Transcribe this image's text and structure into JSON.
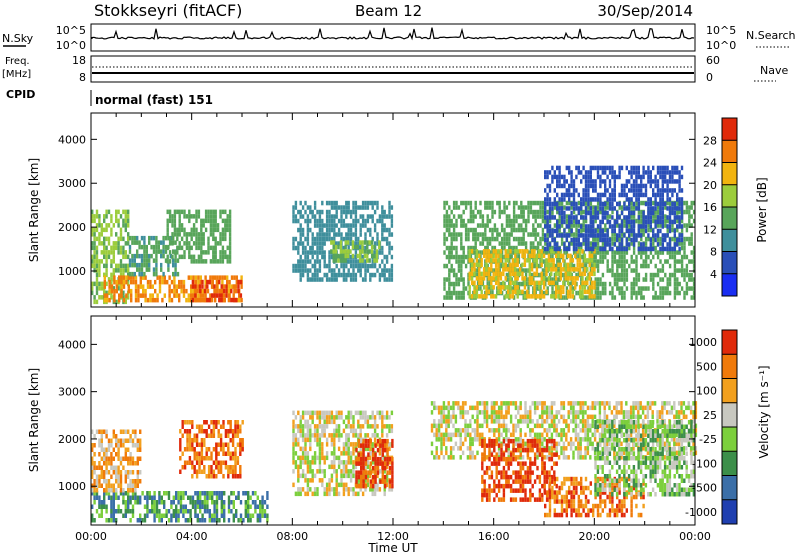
{
  "header": {
    "station": "Stokkseyri (fitACF)",
    "beam": "Beam 12",
    "date": "30/Sep/2014"
  },
  "top_panels": {
    "nsky_label": "N.Sky",
    "nsearch_label": "N.Search",
    "noise_ticks": [
      "10^5",
      "10^0"
    ],
    "freq_label": "Freq.",
    "freq_unit": "[MHz]",
    "freq_ticks": [
      "18",
      "8"
    ],
    "nave_ticks": [
      "60",
      "0"
    ],
    "nave_label": "Nave",
    "cpid_label": "CPID",
    "cpid_text": "normal (fast) 151"
  },
  "chart_data": [
    {
      "type": "heatmap",
      "panel": "power",
      "ylabel": "Slant Range [km]",
      "ylim": [
        180,
        4600
      ],
      "yticks": [
        1000,
        2000,
        3000,
        4000
      ],
      "xlabel": "",
      "xlim": [
        0,
        24
      ],
      "colorbar": {
        "label": "Power [dB]",
        "range": [
          0,
          32
        ],
        "ticks": [
          "4",
          "8",
          "12",
          "16",
          "20",
          "24",
          "28"
        ],
        "colors": [
          "#1a2ef2",
          "#2a4fb8",
          "#3f8f9c",
          "#58a55a",
          "#9ccd3c",
          "#f2b40f",
          "#f07a0a",
          "#e02a0a"
        ]
      },
      "regions": [
        {
          "t": [
            0.0,
            1.5
          ],
          "r": [
            300,
            2400
          ],
          "level": 16
        },
        {
          "t": [
            0.5,
            6.0
          ],
          "r": [
            300,
            900
          ],
          "level": 24
        },
        {
          "t": [
            4.0,
            6.0
          ],
          "r": [
            300,
            800
          ],
          "level": 28
        },
        {
          "t": [
            1.5,
            3.5
          ],
          "r": [
            900,
            1800
          ],
          "level": 12
        },
        {
          "t": [
            3.0,
            5.5
          ],
          "r": [
            1200,
            2400
          ],
          "level": 14
        },
        {
          "t": [
            8.0,
            12.0
          ],
          "r": [
            800,
            2600
          ],
          "level": 10
        },
        {
          "t": [
            9.5,
            11.5
          ],
          "r": [
            1200,
            1700
          ],
          "level": 16
        },
        {
          "t": [
            14.0,
            24.0
          ],
          "r": [
            400,
            2600
          ],
          "level": 14
        },
        {
          "t": [
            15.0,
            20.0
          ],
          "r": [
            400,
            1500
          ],
          "level": 20
        },
        {
          "t": [
            18.0,
            23.5
          ],
          "r": [
            1500,
            3400
          ],
          "level": 6
        }
      ]
    },
    {
      "type": "heatmap",
      "panel": "velocity",
      "ylabel": "Slant Range [km]",
      "ylim": [
        180,
        4600
      ],
      "yticks": [
        1000,
        2000,
        3000,
        4000
      ],
      "xlabel": "Time UT",
      "xlim": [
        0,
        24
      ],
      "xticks": [
        "00:00",
        "04:00",
        "08:00",
        "12:00",
        "16:00",
        "20:00",
        "00:00"
      ],
      "colorbar": {
        "label": "Velocity [m s⁻¹]",
        "ticks": [
          "1000",
          "500",
          "100",
          "25",
          "-25",
          "-100",
          "-500",
          "-1000"
        ],
        "colors": [
          "#1f3fb0",
          "#3b6fa8",
          "#3c8f4a",
          "#7ccf3c",
          "#c8c8c0",
          "#f2a01e",
          "#f07a0a",
          "#e02a0a"
        ]
      },
      "regions": [
        {
          "t": [
            0.0,
            7.0
          ],
          "r": [
            300,
            900
          ],
          "level": 2
        },
        {
          "t": [
            0.0,
            2.0
          ],
          "r": [
            900,
            2200
          ],
          "level": 5
        },
        {
          "t": [
            3.5,
            6.0
          ],
          "r": [
            1200,
            2400
          ],
          "level": 6
        },
        {
          "t": [
            8.0,
            12.0
          ],
          "r": [
            800,
            2600
          ],
          "level": 4
        },
        {
          "t": [
            10.5,
            12.0
          ],
          "r": [
            1000,
            2000
          ],
          "level": 7
        },
        {
          "t": [
            13.5,
            24.0
          ],
          "r": [
            1600,
            2800
          ],
          "level": 4
        },
        {
          "t": [
            15.5,
            18.5
          ],
          "r": [
            700,
            2000
          ],
          "level": 7
        },
        {
          "t": [
            18.0,
            22.0
          ],
          "r": [
            400,
            1200
          ],
          "level": 6
        },
        {
          "t": [
            20.0,
            24.0
          ],
          "r": [
            800,
            2400
          ],
          "level": 3
        }
      ]
    }
  ]
}
